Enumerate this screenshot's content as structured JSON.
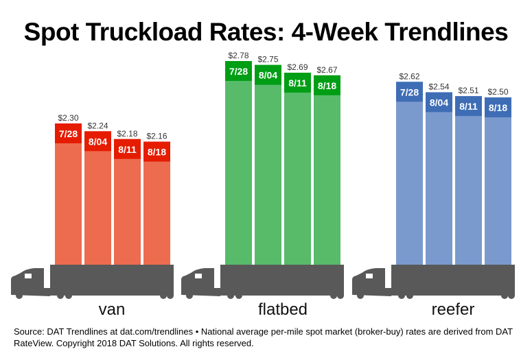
{
  "title": "Spot Truckload Rates: 4-Week Trendlines",
  "source": "Source: DAT Trendlines at dat.com/trendlines • National average per-mile spot market (broker-buy) rates are derived from DAT RateView. Copyright 2018 DAT Solutions. All rights reserved.",
  "chart_data": {
    "type": "bar",
    "title": "Spot Truckload Rates: 4-Week Trendlines",
    "categories": [
      "7/28",
      "8/04",
      "8/11",
      "8/18"
    ],
    "groups": [
      {
        "name": "van",
        "values": [
          2.3,
          2.24,
          2.18,
          2.16
        ],
        "value_labels": [
          "$2.30",
          "$2.24",
          "$2.18",
          "$2.16"
        ],
        "color": "#ED6B4F",
        "band_color": "#E51C00"
      },
      {
        "name": "flatbed",
        "values": [
          2.78,
          2.75,
          2.69,
          2.67
        ],
        "value_labels": [
          "$2.78",
          "$2.75",
          "$2.69",
          "$2.67"
        ],
        "color": "#57BB6A",
        "band_color": "#009E14"
      },
      {
        "name": "reefer",
        "values": [
          2.62,
          2.54,
          2.51,
          2.5
        ],
        "value_labels": [
          "$2.62",
          "$2.54",
          "$2.51",
          "$2.50"
        ],
        "color": "#7A9ACD",
        "band_color": "#3E6DB5"
      }
    ],
    "truck_color": "#595959",
    "grid": false,
    "legend": "none"
  }
}
